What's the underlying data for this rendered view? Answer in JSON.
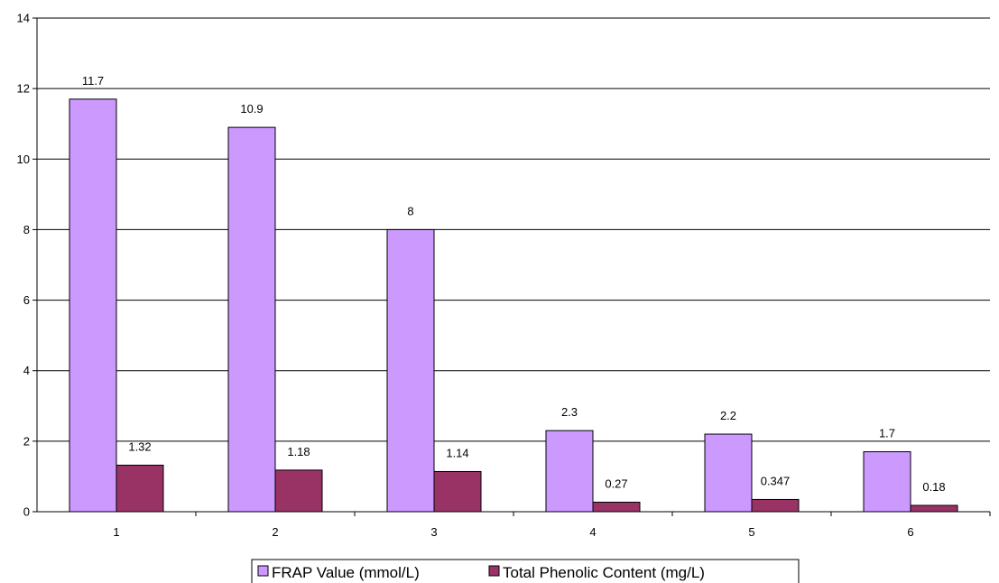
{
  "chart_data": {
    "type": "bar",
    "categories": [
      "1",
      "2",
      "3",
      "4",
      "5",
      "6"
    ],
    "series": [
      {
        "name": "FRAP Value (mmol/L)",
        "values": [
          11.7,
          10.9,
          8,
          2.3,
          2.2,
          1.7
        ],
        "labels": [
          "11.7",
          "10.9",
          "8",
          "2.3",
          "2.2",
          "1.7"
        ],
        "color": "#cc99ff"
      },
      {
        "name": "Total Phenolic Content (mg/L)",
        "values": [
          1.32,
          1.18,
          1.14,
          0.27,
          0.347,
          0.18
        ],
        "labels": [
          "1.32",
          "1.18",
          "1.14",
          "0.27",
          "0.347",
          "0.18"
        ],
        "color": "#993366"
      }
    ],
    "yticks": [
      "0",
      "2",
      "4",
      "6",
      "8",
      "10",
      "12",
      "14"
    ],
    "ylim": [
      0,
      14
    ],
    "grid": true,
    "legend_position": "bottom"
  }
}
